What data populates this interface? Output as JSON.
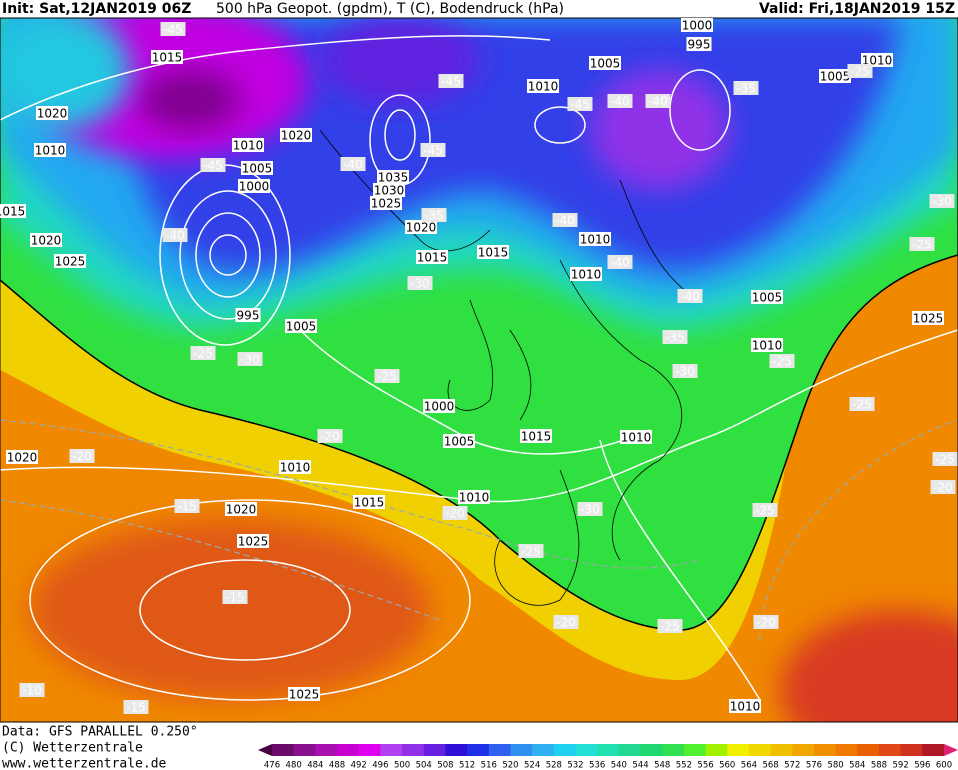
{
  "header": {
    "init": "Init: Sat,12JAN2019 06Z",
    "title": "500 hPa Geopot. (gpdm), T (C), Bodendruck (hPa)",
    "valid": "Valid: Fri,18JAN2019 15Z"
  },
  "footer": {
    "data": "Data: GFS PARALLEL 0.250°",
    "copyright": "(C) Wetterzentrale",
    "url": "www.wetterzentrale.de"
  },
  "colorbar": {
    "labels": [
      476,
      480,
      484,
      488,
      492,
      496,
      500,
      504,
      508,
      512,
      516,
      520,
      524,
      528,
      532,
      536,
      540,
      544,
      548,
      552,
      556,
      560,
      564,
      568,
      572,
      576,
      580,
      584,
      588,
      592,
      596,
      600
    ],
    "colors": [
      "#4a0040",
      "#6a0a6a",
      "#8a1090",
      "#a810b0",
      "#c800d0",
      "#e000f0",
      "#b040f0",
      "#9030e8",
      "#6820e0",
      "#3010d8",
      "#2030e8",
      "#3060f0",
      "#3090f0",
      "#30b0f0",
      "#20d0f0",
      "#20e0d8",
      "#20e0b0",
      "#20d890",
      "#20d870",
      "#30e050",
      "#50f030",
      "#a0f000",
      "#f0f000",
      "#f0d800",
      "#f0c000",
      "#f0a800",
      "#f09000",
      "#f07800",
      "#e86000",
      "#e04818",
      "#d03020",
      "#b01828",
      "#e02070"
    ]
  },
  "pressure_labels": [
    1015,
    1020,
    1010,
    1020,
    1010,
    1005,
    1000,
    1035,
    1030,
    1025,
    1020,
    1015,
    1015,
    1010,
    1005,
    995,
    1000,
    1010,
    1010,
    1005,
    1010,
    1005,
    1010,
    1025,
    1025,
    1020,
    1015,
    995,
    1005,
    1000,
    1005,
    1015,
    1010,
    1010,
    1015,
    1010,
    1020,
    1025,
    1020,
    1025,
    1010
  ],
  "temperature_labels": [
    -45,
    -45,
    -45,
    -40,
    -40,
    -35,
    -25,
    -45,
    -40,
    -45,
    -35,
    -40,
    -40,
    -40,
    -40,
    -30,
    -25,
    -30,
    -25,
    -30,
    -25,
    -35,
    -30,
    -25,
    -25,
    -25,
    -20,
    -20,
    -15,
    -20,
    -30,
    -25,
    -25,
    -15,
    -20,
    -25,
    -20,
    -10,
    -15,
    -20
  ]
}
